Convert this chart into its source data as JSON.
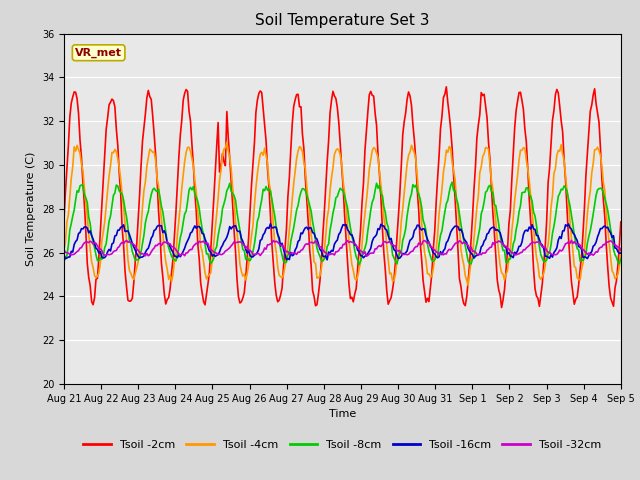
{
  "title": "Soil Temperature Set 3",
  "xlabel": "Time",
  "ylabel": "Soil Temperature (C)",
  "ylim": [
    20,
    36
  ],
  "yticks": [
    20,
    22,
    24,
    26,
    28,
    30,
    32,
    34,
    36
  ],
  "xtick_labels": [
    "Aug 21",
    "Aug 22",
    "Aug 23",
    "Aug 24",
    "Aug 25",
    "Aug 26",
    "Aug 27",
    "Aug 28",
    "Aug 29",
    "Aug 30",
    "Aug 31",
    "Sep 1",
    "Sep 2",
    "Sep 3",
    "Sep 4",
    "Sep 5"
  ],
  "series_colors": [
    "#ff0000",
    "#ff9900",
    "#00cc00",
    "#0000cc",
    "#cc00cc"
  ],
  "series_labels": [
    "Tsoil -2cm",
    "Tsoil -4cm",
    "Tsoil -8cm",
    "Tsoil -16cm",
    "Tsoil -32cm"
  ],
  "watermark": "VR_met",
  "fig_bg_color": "#d8d8d8",
  "plot_bg_color": "#e8e8e8",
  "title_fontsize": 11,
  "axis_label_fontsize": 8,
  "tick_fontsize": 7,
  "legend_fontsize": 8,
  "line_width": 1.2,
  "n_points": 384
}
